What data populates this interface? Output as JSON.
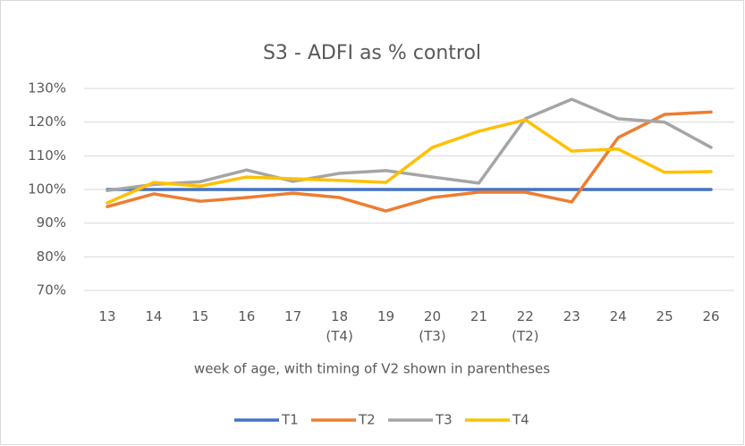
{
  "chart_data": {
    "type": "line",
    "title": "S3 - ADFI as % control",
    "x_label": "week of age, with timing of V2 shown in parentheses",
    "categories": [
      "13",
      "14",
      "15",
      "16",
      "17",
      "18\n(T4)",
      "19",
      "20\n(T3)",
      "21",
      "22\n(T2)",
      "23",
      "24",
      "25",
      "26"
    ],
    "series": [
      {
        "name": "T1",
        "color": "#4472c4",
        "values": [
          100,
          100,
          100,
          100,
          100,
          100,
          100,
          100,
          100,
          100,
          100,
          100,
          100,
          100
        ]
      },
      {
        "name": "T2",
        "color": "#ed7d31",
        "values": [
          94.9,
          98.7,
          96.5,
          97.6,
          98.9,
          97.6,
          93.6,
          97.6,
          99.2,
          99.2,
          96.3,
          115.4,
          122.3,
          123
        ]
      },
      {
        "name": "T3",
        "color": "#a5a5a5",
        "values": [
          99.7,
          101.5,
          102.3,
          105.8,
          102.4,
          104.8,
          105.6,
          103.7,
          101.9,
          121,
          126.8,
          121,
          120,
          112.5
        ]
      },
      {
        "name": "T4",
        "color": "#ffc000",
        "values": [
          96,
          102.1,
          101,
          103.7,
          103.2,
          102.7,
          102.1,
          112.5,
          117.3,
          120.7,
          111.4,
          112,
          105.1,
          105.3
        ]
      }
    ],
    "ylim": [
      70,
      130
    ],
    "yticks": [
      {
        "value": 70,
        "label": "70%"
      },
      {
        "value": 80,
        "label": "80%"
      },
      {
        "value": 90,
        "label": "90%"
      },
      {
        "value": 100,
        "label": "100%"
      },
      {
        "value": 110,
        "label": "110%"
      },
      {
        "value": 120,
        "label": "120%"
      },
      {
        "value": 130,
        "label": "130%"
      }
    ],
    "grid": true,
    "legend": "bottom"
  }
}
